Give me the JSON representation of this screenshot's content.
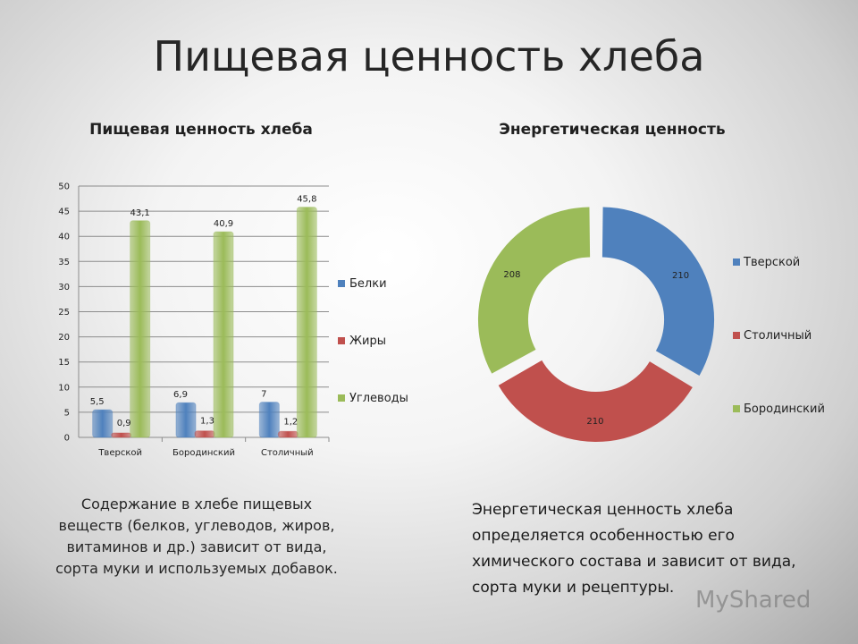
{
  "slide": {
    "title": "Пищевая ценность хлеба",
    "left_caption": "Содержание в хлебе пищевых веществ (белков, углеводов, жиров, витаминов и др.) зависит от вида, сорта муки и используемых добавок.",
    "right_caption": "Энергетическая ценность хлеба определяется особенностью его химического состава и зависит от вида, сорта муки и рецептуры.",
    "watermark": "MyShared"
  },
  "chart_data": [
    {
      "type": "bar",
      "title": "Пищевая ценность хлеба",
      "categories": [
        "Тверской",
        "Бородинский",
        "Столичный"
      ],
      "series": [
        {
          "name": "Белки",
          "values": [
            5.5,
            6.9,
            7
          ],
          "labels": [
            "5,5",
            "6,9",
            "7"
          ],
          "color": "#4f81bd"
        },
        {
          "name": "Жиры",
          "values": [
            0.9,
            1.3,
            1.2
          ],
          "labels": [
            "0,9",
            "1,3",
            "1,2"
          ],
          "color": "#c0504d"
        },
        {
          "name": "Углеводы",
          "values": [
            43.1,
            40.9,
            45.8
          ],
          "labels": [
            "43,1",
            "40,9",
            "45,8"
          ],
          "color": "#9bbb59"
        }
      ],
      "y_ticks": [
        "0",
        "5",
        "10",
        "15",
        "20",
        "25",
        "30",
        "35",
        "40",
        "45",
        "50"
      ],
      "ylim": [
        0,
        50
      ],
      "grid": true,
      "legend_position": "right"
    },
    {
      "type": "pie",
      "subtype": "donut",
      "title": "Энергетическая ценность",
      "categories": [
        "Тверской",
        "Столичный",
        "Бородинский"
      ],
      "values": [
        210,
        210,
        208
      ],
      "labels": [
        "210",
        "210",
        "208"
      ],
      "colors": [
        "#4f81bd",
        "#c0504d",
        "#9bbb59"
      ],
      "legend_position": "right"
    }
  ]
}
